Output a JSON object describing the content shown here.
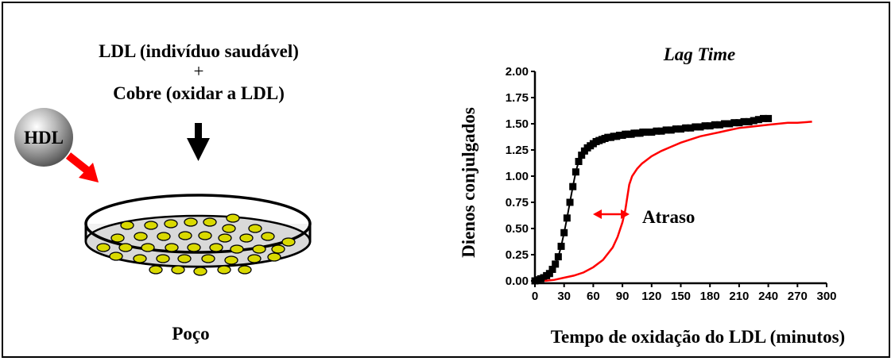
{
  "diagram": {
    "left_title": "LDL  (indivíduo saudável)",
    "plus": "+",
    "left_subtitle": "Cobre (oxidar a LDL)",
    "hdl_label": "HDL",
    "well_caption": "Poço",
    "atraso_label": "Atraso",
    "colors": {
      "red": "#ff0000",
      "particle": "#d9d900",
      "dish_fill": "#d9d9d9"
    }
  },
  "chart_data": {
    "type": "scatter",
    "title": "Lag Time",
    "xlabel": "Tempo de oxidação do LDL (minutos)",
    "ylabel": "Dienos conjulgados",
    "xlim": [
      0,
      300
    ],
    "ylim": [
      0,
      2
    ],
    "x_ticks": [
      "0",
      "30",
      "60",
      "90",
      "120",
      "150",
      "180",
      "210",
      "240",
      "270",
      "300"
    ],
    "y_ticks": [
      "0.00",
      "0.25",
      "0.50",
      "0.75",
      "1.00",
      "1.25",
      "1.50",
      "1.75",
      "2.00"
    ],
    "series": [
      {
        "marker": "square",
        "color": "#000000",
        "connected": true,
        "x": [
          0,
          3,
          6,
          9,
          12,
          15,
          18,
          21,
          24,
          27,
          30,
          33,
          36,
          39,
          42,
          45,
          48,
          51,
          54,
          57,
          60,
          63,
          66,
          69,
          72,
          75,
          78,
          81,
          84,
          87,
          90,
          93,
          96,
          99,
          102,
          105,
          108,
          111,
          114,
          117,
          120,
          125,
          130,
          135,
          140,
          145,
          150,
          155,
          160,
          165,
          170,
          175,
          180,
          185,
          190,
          195,
          200,
          205,
          210,
          215,
          220,
          225,
          230,
          235,
          240
        ],
        "y": [
          0.0,
          0.01,
          0.02,
          0.03,
          0.05,
          0.07,
          0.11,
          0.16,
          0.23,
          0.33,
          0.46,
          0.6,
          0.75,
          0.9,
          1.04,
          1.14,
          1.2,
          1.24,
          1.27,
          1.29,
          1.31,
          1.33,
          1.34,
          1.35,
          1.36,
          1.37,
          1.37,
          1.38,
          1.38,
          1.39,
          1.39,
          1.4,
          1.4,
          1.4,
          1.41,
          1.41,
          1.41,
          1.42,
          1.42,
          1.42,
          1.42,
          1.43,
          1.43,
          1.44,
          1.44,
          1.45,
          1.45,
          1.46,
          1.46,
          1.47,
          1.47,
          1.48,
          1.48,
          1.49,
          1.49,
          1.5,
          1.5,
          1.51,
          1.51,
          1.52,
          1.52,
          1.53,
          1.54,
          1.55,
          1.55
        ]
      },
      {
        "marker": "none",
        "color": "#ff0000",
        "connected": true,
        "x": [
          10,
          20,
          30,
          40,
          50,
          60,
          70,
          80,
          85,
          90,
          93,
          95,
          97,
          100,
          105,
          110,
          120,
          130,
          140,
          150,
          160,
          170,
          180,
          190,
          200,
          210,
          220,
          230,
          240,
          250,
          260,
          270,
          285
        ],
        "y": [
          0.0,
          0.01,
          0.03,
          0.05,
          0.08,
          0.13,
          0.2,
          0.32,
          0.42,
          0.56,
          0.68,
          0.8,
          0.92,
          1.0,
          1.07,
          1.12,
          1.19,
          1.24,
          1.28,
          1.32,
          1.35,
          1.38,
          1.4,
          1.42,
          1.44,
          1.46,
          1.47,
          1.48,
          1.49,
          1.5,
          1.51,
          1.51,
          1.52
        ]
      }
    ]
  }
}
